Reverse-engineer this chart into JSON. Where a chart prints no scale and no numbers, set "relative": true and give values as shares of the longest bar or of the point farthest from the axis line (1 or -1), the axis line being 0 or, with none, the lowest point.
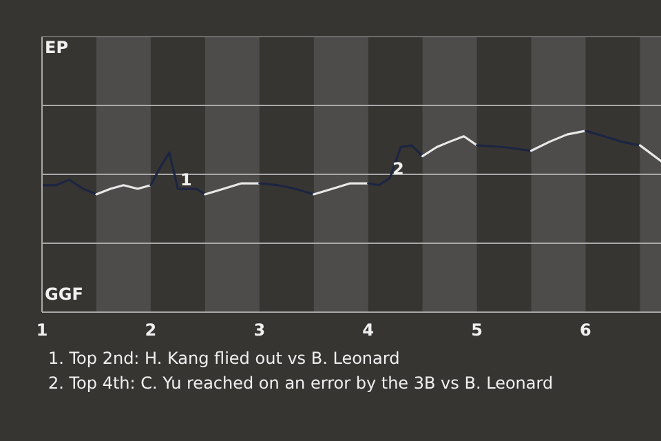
{
  "chart_data": {
    "type": "line",
    "relative": true,
    "xlim": [
      1,
      6.7
    ],
    "xticks": [
      1,
      2,
      3,
      4,
      5,
      6
    ],
    "marker": "none",
    "line_style": "solid",
    "series": [
      {
        "color": "#1c2541",
        "x": [
          1,
          1.13,
          1.25,
          1.38,
          1.5
        ],
        "values": [
          0.7,
          0.7,
          0.73,
          0.68,
          0.65
        ]
      },
      {
        "color": "#e8e8e8",
        "x": [
          1.5,
          1.63,
          1.75,
          1.88,
          2
        ],
        "values": [
          0.65,
          0.68,
          0.7,
          0.68,
          0.7
        ]
      },
      {
        "color": "#1c2541",
        "x": [
          2,
          2.08,
          2.17,
          2.25,
          2.33,
          2.42,
          2.5
        ],
        "values": [
          0.7,
          0.79,
          0.88,
          0.68,
          0.68,
          0.68,
          0.65
        ]
      },
      {
        "color": "#e8e8e8",
        "x": [
          2.5,
          2.67,
          2.83,
          3
        ],
        "values": [
          0.65,
          0.68,
          0.71,
          0.71
        ]
      },
      {
        "color": "#1c2541",
        "x": [
          3,
          3.17,
          3.33,
          3.5
        ],
        "values": [
          0.71,
          0.7,
          0.68,
          0.65
        ]
      },
      {
        "color": "#e8e8e8",
        "x": [
          3.5,
          3.67,
          3.83,
          4
        ],
        "values": [
          0.65,
          0.68,
          0.71,
          0.71
        ]
      },
      {
        "color": "#1c2541",
        "x": [
          4,
          4.1,
          4.2,
          4.3,
          4.4,
          4.5
        ],
        "values": [
          0.71,
          0.7,
          0.74,
          0.91,
          0.92,
          0.86
        ]
      },
      {
        "color": "#e8e8e8",
        "x": [
          4.5,
          4.63,
          4.75,
          4.88,
          5
        ],
        "values": [
          0.86,
          0.91,
          0.94,
          0.97,
          0.92
        ]
      },
      {
        "color": "#1c2541",
        "x": [
          5,
          5.25,
          5.5
        ],
        "values": [
          0.92,
          0.91,
          0.89
        ]
      },
      {
        "color": "#e8e8e8",
        "x": [
          5.5,
          5.67,
          5.83,
          6
        ],
        "values": [
          0.89,
          0.94,
          0.98,
          1
        ]
      },
      {
        "color": "#1c2541",
        "x": [
          6,
          6.17,
          6.33,
          6.5
        ],
        "values": [
          1,
          0.97,
          0.94,
          0.92
        ]
      },
      {
        "color": "#e8e8e8",
        "x": [
          6.5,
          6.7
        ],
        "values": [
          0.92,
          0.83
        ]
      }
    ],
    "bands": [
      {
        "axis": "x",
        "from": 1.5,
        "to": 2,
        "color": "#4d4c4a"
      },
      {
        "axis": "x",
        "from": 2.5,
        "to": 3,
        "color": "#4d4c4a"
      },
      {
        "axis": "x",
        "from": 3.5,
        "to": 4,
        "color": "#4d4c4a"
      },
      {
        "axis": "x",
        "from": 4.5,
        "to": 5,
        "color": "#4d4c4a"
      },
      {
        "axis": "x",
        "from": 5.5,
        "to": 6,
        "color": "#4d4c4a"
      },
      {
        "axis": "x",
        "from": 6.5,
        "to": 6.7,
        "color": "#4d4c4a"
      }
    ],
    "ref_lines": [
      {
        "axis": "y",
        "value": 0.38,
        "color": "#a9a9a9"
      },
      {
        "axis": "y",
        "value": 0.76,
        "color": "#a9a9a9"
      },
      {
        "axis": "y",
        "value": 1.14,
        "color": "#a9a9a9"
      },
      {
        "axis": "y",
        "value": 1.52,
        "color": "#a9a9a9"
      }
    ],
    "annotations": [
      "EP",
      "GGF",
      {
        "text": "1",
        "x": 2.25,
        "y": 0.68
      },
      {
        "text": "2",
        "x": 4.2,
        "y": 0.74
      },
      "1. Top 2nd: H. Kang flied out vs B. Leonard",
      "2. Top 4th: C. Yu reached on an error by the 3B vs B. Leonard"
    ]
  }
}
